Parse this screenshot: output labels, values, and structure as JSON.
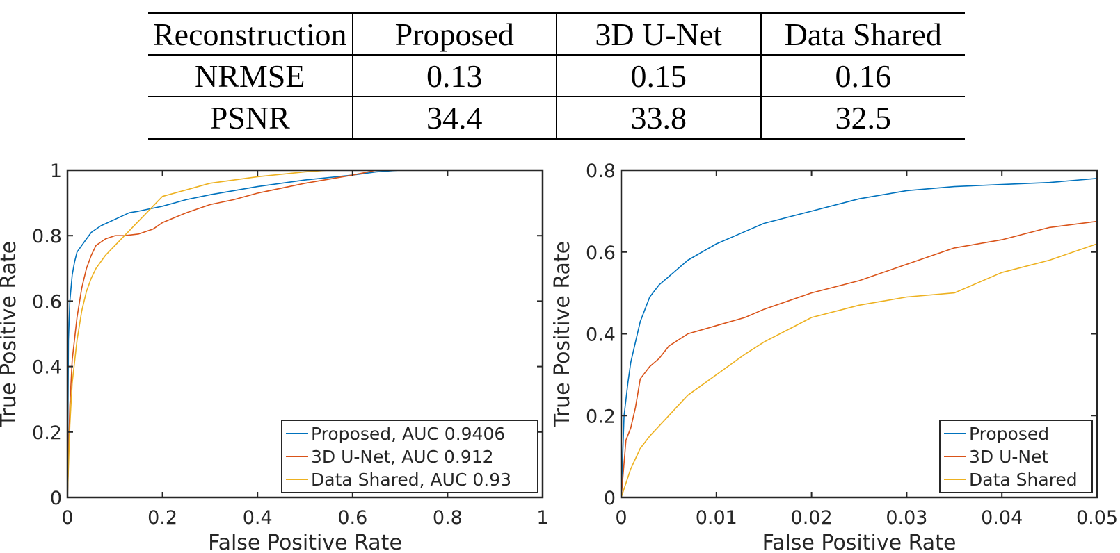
{
  "table": {
    "headers": [
      "Reconstruction",
      "Proposed",
      "3D U-Net",
      "Data Shared"
    ],
    "rows": [
      {
        "metric": "NRMSE",
        "values": [
          "0.13",
          "0.15",
          "0.16"
        ]
      },
      {
        "metric": "PSNR",
        "values": [
          "34.4",
          "33.8",
          "32.5"
        ]
      }
    ]
  },
  "colors": {
    "proposed": "#0072BD",
    "unet": "#D95319",
    "shared": "#EDB120"
  },
  "chart_data": [
    {
      "type": "line",
      "title": "",
      "xlabel": "False Positive Rate",
      "ylabel": "True Positive Rate",
      "xlim": [
        0,
        1
      ],
      "ylim": [
        0,
        1
      ],
      "xticks": [
        "0",
        "0.2",
        "0.4",
        "0.6",
        "0.8",
        "1"
      ],
      "yticks": [
        "0",
        "0.2",
        "0.4",
        "0.6",
        "0.8",
        "1"
      ],
      "legend_position": "bottom-right",
      "grid": false,
      "series": [
        {
          "name": "Proposed, AUC 0.9406",
          "color": "#0072BD",
          "x": [
            0,
            0.002,
            0.005,
            0.01,
            0.015,
            0.02,
            0.03,
            0.04,
            0.05,
            0.07,
            0.1,
            0.13,
            0.15,
            0.2,
            0.25,
            0.3,
            0.4,
            0.5,
            0.6,
            0.65,
            0.7,
            1
          ],
          "y": [
            0,
            0.48,
            0.6,
            0.68,
            0.72,
            0.75,
            0.77,
            0.79,
            0.81,
            0.83,
            0.85,
            0.87,
            0.875,
            0.89,
            0.91,
            0.925,
            0.95,
            0.97,
            0.985,
            0.995,
            1,
            1
          ]
        },
        {
          "name": "3D U-Net, AUC 0.912",
          "color": "#D95319",
          "x": [
            0,
            0.005,
            0.01,
            0.02,
            0.03,
            0.04,
            0.05,
            0.06,
            0.08,
            0.1,
            0.12,
            0.15,
            0.18,
            0.2,
            0.25,
            0.3,
            0.35,
            0.4,
            0.5,
            0.6,
            0.65,
            1
          ],
          "y": [
            0,
            0.28,
            0.42,
            0.55,
            0.64,
            0.7,
            0.74,
            0.77,
            0.79,
            0.8,
            0.8,
            0.805,
            0.82,
            0.84,
            0.87,
            0.895,
            0.91,
            0.93,
            0.96,
            0.985,
            1,
            1
          ]
        },
        {
          "name": "Data Shared, AUC 0.93",
          "color": "#EDB120",
          "x": [
            0,
            0.005,
            0.01,
            0.02,
            0.03,
            0.04,
            0.05,
            0.06,
            0.08,
            0.1,
            0.12,
            0.14,
            0.16,
            0.18,
            0.2,
            0.25,
            0.3,
            0.4,
            0.5,
            0.55,
            1
          ],
          "y": [
            0,
            0.22,
            0.35,
            0.48,
            0.57,
            0.63,
            0.67,
            0.7,
            0.74,
            0.77,
            0.8,
            0.83,
            0.86,
            0.89,
            0.92,
            0.94,
            0.96,
            0.98,
            0.995,
            1,
            1
          ]
        }
      ]
    },
    {
      "type": "line",
      "title": "",
      "xlabel": "False Positive Rate",
      "ylabel": "True Positive Rate",
      "xlim": [
        0,
        0.05
      ],
      "ylim": [
        0,
        0.8
      ],
      "xticks": [
        "0",
        "0.01",
        "0.02",
        "0.03",
        "0.04",
        "0.05"
      ],
      "yticks": [
        "0",
        "0.2",
        "0.4",
        "0.6",
        "0.8"
      ],
      "legend_position": "bottom-right",
      "grid": false,
      "series": [
        {
          "name": "Proposed",
          "color": "#0072BD",
          "x": [
            0,
            0.0003,
            0.0007,
            0.001,
            0.0015,
            0.002,
            0.003,
            0.004,
            0.005,
            0.007,
            0.01,
            0.013,
            0.015,
            0.02,
            0.025,
            0.03,
            0.035,
            0.04,
            0.045,
            0.05
          ],
          "y": [
            0,
            0.2,
            0.28,
            0.33,
            0.38,
            0.43,
            0.49,
            0.52,
            0.54,
            0.58,
            0.62,
            0.65,
            0.67,
            0.7,
            0.73,
            0.75,
            0.76,
            0.765,
            0.77,
            0.78
          ]
        },
        {
          "name": "3D U-Net",
          "color": "#D95319",
          "x": [
            0,
            0.0005,
            0.001,
            0.0015,
            0.002,
            0.003,
            0.004,
            0.005,
            0.007,
            0.01,
            0.013,
            0.015,
            0.02,
            0.025,
            0.03,
            0.035,
            0.04,
            0.045,
            0.05
          ],
          "y": [
            0,
            0.14,
            0.17,
            0.22,
            0.29,
            0.32,
            0.34,
            0.37,
            0.4,
            0.42,
            0.44,
            0.46,
            0.5,
            0.53,
            0.57,
            0.61,
            0.63,
            0.66,
            0.675
          ]
        },
        {
          "name": "Data Shared",
          "color": "#EDB120",
          "x": [
            0,
            0.001,
            0.002,
            0.003,
            0.005,
            0.007,
            0.01,
            0.013,
            0.015,
            0.02,
            0.025,
            0.03,
            0.035,
            0.04,
            0.045,
            0.05
          ],
          "y": [
            0,
            0.07,
            0.12,
            0.15,
            0.2,
            0.25,
            0.3,
            0.35,
            0.38,
            0.44,
            0.47,
            0.49,
            0.5,
            0.55,
            0.58,
            0.62
          ]
        }
      ]
    }
  ]
}
